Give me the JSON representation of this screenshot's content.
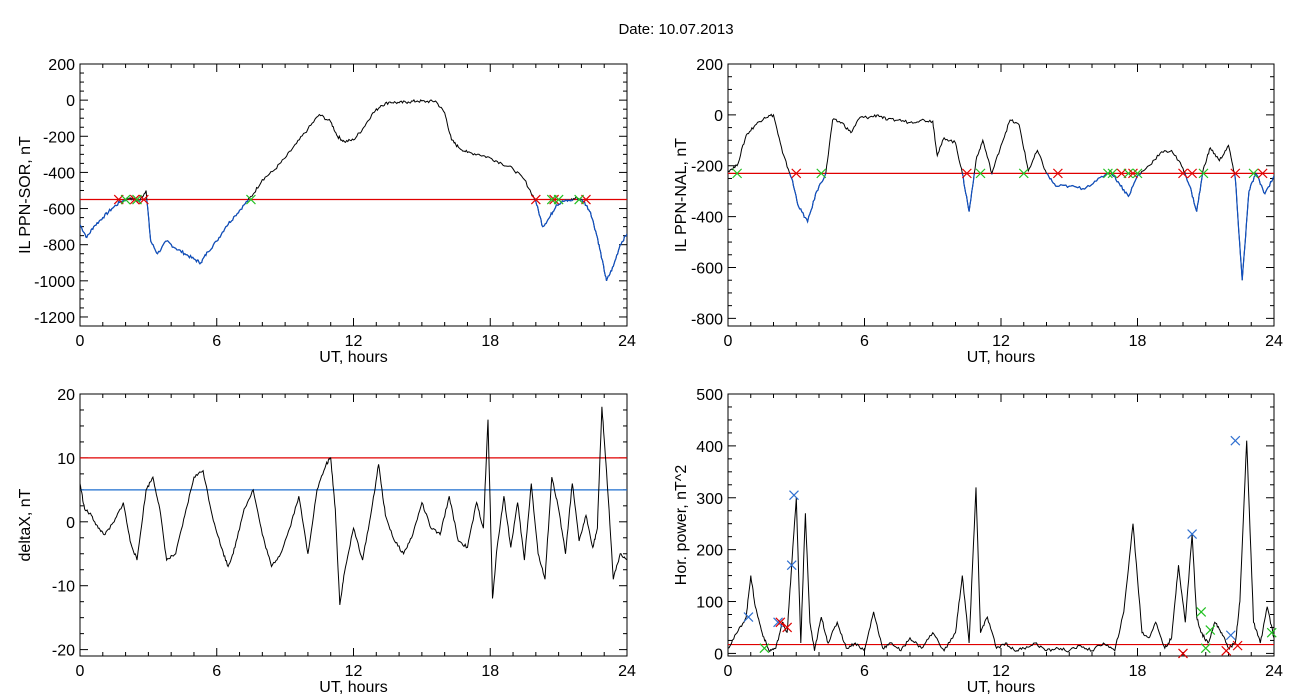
{
  "title": "Date:  10.07.2013",
  "colors": {
    "series": "#000000",
    "threshold": "#e00000",
    "threshold2": "#1f6fcf",
    "below": "#1050c0",
    "mark_red": "#e00000",
    "mark_green": "#20c020",
    "mark_blue": "#3070d0"
  },
  "chart_data": [
    {
      "type": "line",
      "ylabel": "IL PPN-SOR, nT",
      "xlabel": "UT, hours",
      "xlim": [
        0,
        24
      ],
      "xticks": [
        0,
        6,
        12,
        18,
        24
      ],
      "ylim": [
        -1250,
        200
      ],
      "yticks": [
        200,
        0,
        -200,
        -400,
        -600,
        -800,
        -1000,
        -1200
      ],
      "threshold": -550,
      "series": [
        {
          "x": [
            0,
            0.3,
            0.6,
            1,
            1.4,
            1.8,
            2.2,
            2.6,
            2.9,
            3.1,
            3.4,
            3.8,
            4.2,
            4.6,
            5,
            5.3,
            5.6,
            6,
            6.4,
            6.8,
            7.2,
            7.6,
            8,
            8.5,
            9,
            9.5,
            10,
            10.5,
            11,
            11.3,
            11.6,
            12,
            12.4,
            12.8,
            13.2,
            13.6,
            14,
            14.4,
            14.8,
            15.2,
            15.6,
            16,
            16.3,
            16.6,
            17,
            17.5,
            18,
            18.5,
            19,
            19.5,
            20,
            20.3,
            20.6,
            20.9,
            21.2,
            21.5,
            21.8,
            22.1,
            22.4,
            22.7,
            22.9,
            23.1,
            23.4,
            23.7,
            24
          ],
          "y": [
            -690,
            -760,
            -700,
            -650,
            -600,
            -560,
            -540,
            -560,
            -500,
            -780,
            -850,
            -780,
            -820,
            -850,
            -880,
            -900,
            -840,
            -780,
            -700,
            -640,
            -580,
            -520,
            -440,
            -390,
            -320,
            -240,
            -160,
            -80,
            -120,
            -200,
            -230,
            -220,
            -160,
            -80,
            -30,
            -10,
            -15,
            -10,
            -5,
            -8,
            -5,
            -70,
            -220,
            -260,
            -290,
            -300,
            -320,
            -350,
            -380,
            -440,
            -560,
            -700,
            -650,
            -580,
            -560,
            -555,
            -540,
            -560,
            -620,
            -760,
            -880,
            -1000,
            -920,
            -800,
            -740
          ]
        }
      ],
      "marks": [
        {
          "x": 1.7,
          "y": -550,
          "color": "red"
        },
        {
          "x": 2.4,
          "y": -550,
          "color": "red"
        },
        {
          "x": 2.8,
          "y": -550,
          "color": "red"
        },
        {
          "x": 2.0,
          "y": -550,
          "color": "green"
        },
        {
          "x": 2.5,
          "y": -550,
          "color": "green"
        },
        {
          "x": 7.5,
          "y": -550,
          "color": "green"
        },
        {
          "x": 20.0,
          "y": -550,
          "color": "red"
        },
        {
          "x": 20.8,
          "y": -550,
          "color": "red"
        },
        {
          "x": 22.2,
          "y": -550,
          "color": "red"
        },
        {
          "x": 20.7,
          "y": -550,
          "color": "green"
        },
        {
          "x": 21.0,
          "y": -550,
          "color": "green"
        },
        {
          "x": 21.9,
          "y": -550,
          "color": "green"
        }
      ]
    },
    {
      "type": "line",
      "ylabel": "IL PPN-NAL, nT",
      "xlabel": "UT, hours",
      "xlim": [
        0,
        24
      ],
      "xticks": [
        0,
        6,
        12,
        18,
        24
      ],
      "ylim": [
        -830,
        200
      ],
      "yticks": [
        200,
        0,
        -200,
        -400,
        -600,
        -800
      ],
      "threshold": -230,
      "series": [
        {
          "x": [
            0,
            0.4,
            0.8,
            1.2,
            1.6,
            2,
            2.4,
            2.8,
            3.1,
            3.5,
            3.9,
            4.3,
            4.6,
            5,
            5.4,
            5.8,
            6.2,
            6.6,
            7,
            7.5,
            8,
            8.5,
            9,
            9.2,
            9.5,
            10,
            10.3,
            10.6,
            10.9,
            11.2,
            11.6,
            12,
            12.4,
            12.8,
            13.2,
            13.6,
            14,
            14.4,
            15,
            15.6,
            16.2,
            16.8,
            17.2,
            17.6,
            18,
            18.5,
            19,
            19.5,
            20,
            20.3,
            20.6,
            20.9,
            21.2,
            21.6,
            22,
            22.3,
            22.6,
            22.9,
            23.2,
            23.6,
            24
          ],
          "y": [
            -220,
            -200,
            -80,
            -40,
            -10,
            0,
            -150,
            -250,
            -360,
            -420,
            -300,
            -230,
            -20,
            -30,
            -70,
            -10,
            -10,
            0,
            -20,
            -20,
            -30,
            -20,
            -25,
            -160,
            -90,
            -110,
            -230,
            -380,
            -180,
            -100,
            -230,
            -120,
            -20,
            -40,
            -220,
            -140,
            -230,
            -280,
            -280,
            -290,
            -260,
            -220,
            -270,
            -320,
            -240,
            -200,
            -150,
            -140,
            -210,
            -280,
            -380,
            -210,
            -130,
            -180,
            -120,
            -250,
            -650,
            -300,
            -230,
            -310,
            -240
          ]
        }
      ],
      "marks": [
        {
          "x": 0.4,
          "y": -230,
          "color": "green"
        },
        {
          "x": 3.0,
          "y": -230,
          "color": "red"
        },
        {
          "x": 4.1,
          "y": -230,
          "color": "green"
        },
        {
          "x": 10.5,
          "y": -230,
          "color": "red"
        },
        {
          "x": 11.1,
          "y": -230,
          "color": "green"
        },
        {
          "x": 13.0,
          "y": -230,
          "color": "green"
        },
        {
          "x": 14.5,
          "y": -230,
          "color": "red"
        },
        {
          "x": 16.7,
          "y": -230,
          "color": "green"
        },
        {
          "x": 16.9,
          "y": -230,
          "color": "green"
        },
        {
          "x": 17.3,
          "y": -230,
          "color": "red"
        },
        {
          "x": 17.6,
          "y": -230,
          "color": "green"
        },
        {
          "x": 17.8,
          "y": -230,
          "color": "red"
        },
        {
          "x": 18.0,
          "y": -230,
          "color": "green"
        },
        {
          "x": 20.0,
          "y": -230,
          "color": "red"
        },
        {
          "x": 20.4,
          "y": -230,
          "color": "red"
        },
        {
          "x": 20.9,
          "y": -230,
          "color": "green"
        },
        {
          "x": 22.3,
          "y": -230,
          "color": "red"
        },
        {
          "x": 23.1,
          "y": -230,
          "color": "green"
        },
        {
          "x": 23.5,
          "y": -230,
          "color": "red"
        }
      ]
    },
    {
      "type": "line",
      "ylabel": "deltaX, nT",
      "xlabel": "UT, hours",
      "xlim": [
        0,
        24
      ],
      "xticks": [
        0,
        6,
        12,
        18,
        24
      ],
      "ylim": [
        -21,
        20
      ],
      "yticks": [
        20,
        10,
        0,
        -10,
        -20
      ],
      "threshold": 10,
      "threshold2": 5,
      "series": [
        {
          "x": [
            0,
            0.2,
            0.5,
            0.8,
            1.1,
            1.5,
            1.9,
            2.2,
            2.5,
            2.9,
            3.2,
            3.5,
            3.8,
            4.2,
            4.6,
            5,
            5.4,
            5.8,
            6.2,
            6.5,
            6.8,
            7.2,
            7.6,
            8,
            8.4,
            8.8,
            9.2,
            9.6,
            10,
            10.4,
            10.8,
            11,
            11.2,
            11.4,
            11.6,
            12,
            12.4,
            12.8,
            13.1,
            13.4,
            13.8,
            14.2,
            14.6,
            15,
            15.4,
            15.8,
            16.2,
            16.6,
            17,
            17.4,
            17.7,
            17.9,
            18.1,
            18.3,
            18.6,
            18.9,
            19.2,
            19.5,
            19.8,
            20.1,
            20.4,
            20.7,
            21,
            21.3,
            21.6,
            21.9,
            22.2,
            22.5,
            22.7,
            22.9,
            23.1,
            23.4,
            23.7,
            24
          ],
          "y": [
            6,
            2,
            1,
            -1,
            -2,
            0,
            3,
            -3,
            -6,
            5,
            7,
            2,
            -6,
            -5,
            1,
            7,
            8,
            1,
            -4,
            -7,
            -4,
            2,
            5,
            -2,
            -7,
            -5,
            -1,
            4,
            -5,
            5,
            9,
            10,
            2,
            -13,
            -8,
            -1,
            -6,
            2,
            9,
            1,
            -3,
            -5,
            -2,
            3,
            -1,
            -2,
            4,
            -3,
            -4,
            3,
            -1,
            16,
            -12,
            -4,
            4,
            -4,
            3,
            -6,
            6,
            -5,
            -9,
            7,
            2,
            -5,
            6,
            -3,
            1,
            -4,
            -1,
            18,
            8,
            -9,
            -5,
            -6
          ]
        }
      ]
    },
    {
      "type": "line",
      "ylabel": "Hor. power, nT^2",
      "xlabel": "UT, hours",
      "xlim": [
        0,
        24
      ],
      "xticks": [
        0,
        6,
        12,
        18,
        24
      ],
      "ylim": [
        -5,
        500
      ],
      "yticks": [
        500,
        400,
        300,
        200,
        100,
        0
      ],
      "threshold": 17,
      "series": [
        {
          "x": [
            0,
            0.4,
            0.8,
            1,
            1.2,
            1.5,
            1.8,
            2.1,
            2.4,
            2.6,
            2.8,
            3.0,
            3.2,
            3.4,
            3.6,
            3.8,
            4.1,
            4.4,
            4.8,
            5.2,
            5.6,
            6,
            6.4,
            6.8,
            7.2,
            7.6,
            8,
            8.5,
            9,
            9.5,
            10,
            10.3,
            10.6,
            10.9,
            11.1,
            11.4,
            11.8,
            12.2,
            12.6,
            13,
            13.5,
            14,
            14.5,
            15,
            15.5,
            16,
            16.5,
            17,
            17.4,
            17.8,
            18.2,
            18.5,
            18.8,
            19.2,
            19.5,
            19.8,
            20.1,
            20.4,
            20.6,
            20.8,
            21.1,
            21.4,
            21.7,
            22,
            22.3,
            22.5,
            22.8,
            23.1,
            23.4,
            23.7,
            24
          ],
          "y": [
            10,
            40,
            70,
            150,
            90,
            40,
            5,
            10,
            60,
            40,
            170,
            300,
            20,
            270,
            60,
            5,
            70,
            20,
            60,
            10,
            20,
            5,
            80,
            10,
            20,
            5,
            30,
            10,
            40,
            5,
            40,
            150,
            20,
            320,
            40,
            70,
            10,
            20,
            5,
            10,
            20,
            5,
            10,
            5,
            15,
            5,
            20,
            5,
            80,
            250,
            40,
            30,
            60,
            10,
            30,
            170,
            60,
            230,
            70,
            40,
            20,
            60,
            40,
            10,
            20,
            100,
            410,
            60,
            20,
            90,
            30
          ]
        }
      ],
      "marks": [
        {
          "x": 0.9,
          "y": 70,
          "color": "blue"
        },
        {
          "x": 2.2,
          "y": 60,
          "color": "blue"
        },
        {
          "x": 2.8,
          "y": 170,
          "color": "blue"
        },
        {
          "x": 2.9,
          "y": 305,
          "color": "blue"
        },
        {
          "x": 20.4,
          "y": 230,
          "color": "blue"
        },
        {
          "x": 22.3,
          "y": 410,
          "color": "blue"
        },
        {
          "x": 22.1,
          "y": 35,
          "color": "blue"
        },
        {
          "x": 2.3,
          "y": 60,
          "color": "red"
        },
        {
          "x": 2.6,
          "y": 50,
          "color": "red"
        },
        {
          "x": 20.0,
          "y": 0,
          "color": "red"
        },
        {
          "x": 21.9,
          "y": 5,
          "color": "red"
        },
        {
          "x": 22.4,
          "y": 15,
          "color": "red"
        },
        {
          "x": 1.6,
          "y": 10,
          "color": "green"
        },
        {
          "x": 20.8,
          "y": 80,
          "color": "green"
        },
        {
          "x": 21.2,
          "y": 45,
          "color": "green"
        },
        {
          "x": 21.0,
          "y": 10,
          "color": "green"
        },
        {
          "x": 23.9,
          "y": 40,
          "color": "green"
        }
      ]
    }
  ]
}
